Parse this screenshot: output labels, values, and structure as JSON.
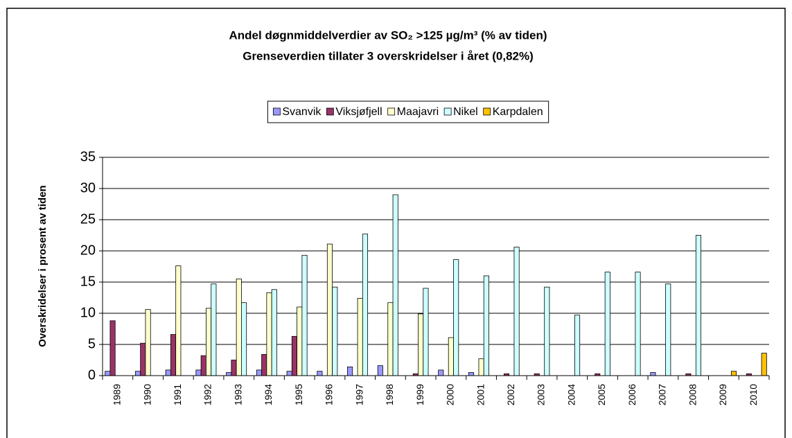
{
  "chart_data": {
    "type": "bar",
    "title": "Andel døgnmiddelverdier av SO₂ >125 µg/m³  (% av tiden)",
    "subtitle": "Grenseverdien tillater 3 overskridelser i året (0,82%)",
    "y_label": "Overskridelser i prosent av tiden",
    "categories": [
      "1989",
      "1990",
      "1991",
      "1992",
      "1993",
      "1994",
      "1995",
      "1996",
      "1997",
      "1998",
      "1999",
      "2000",
      "2001",
      "2002",
      "2003",
      "2004",
      "2005",
      "2006",
      "2007",
      "2008",
      "2009",
      "2010"
    ],
    "series": [
      {
        "name": "Svanvik",
        "color": "#9999ff",
        "values": [
          0.7,
          0.7,
          0.9,
          0.9,
          0.5,
          0.9,
          0.7,
          0.7,
          1.4,
          1.6,
          0,
          0.9,
          0.5,
          0,
          0,
          0,
          0,
          0,
          0.5,
          0,
          0,
          0
        ]
      },
      {
        "name": "Viksjøfjell",
        "color": "#993366",
        "values": [
          8.8,
          5.2,
          6.6,
          3.2,
          2.5,
          3.4,
          6.3,
          0,
          0,
          0,
          0.3,
          0,
          0,
          0.3,
          0.3,
          0,
          0.3,
          0,
          0,
          0.3,
          0,
          0.3
        ]
      },
      {
        "name": "Maajavri",
        "color": "#ffffcc",
        "values": [
          0,
          10.6,
          17.6,
          10.8,
          15.5,
          13.3,
          11.0,
          21.1,
          12.4,
          11.7,
          9.9,
          6.1,
          2.7,
          0,
          0,
          0,
          0,
          0,
          0,
          0,
          0,
          0
        ]
      },
      {
        "name": "Nikel",
        "color": "#ccffff",
        "values": [
          0,
          0,
          0,
          14.7,
          11.7,
          13.8,
          19.3,
          14.2,
          22.7,
          29.0,
          14.0,
          18.6,
          16.0,
          20.6,
          14.2,
          9.7,
          16.6,
          16.6,
          14.7,
          22.5,
          0,
          0
        ]
      },
      {
        "name": "Karpdalen",
        "color": "#ffc000",
        "values": [
          0,
          0,
          0,
          0,
          0,
          0,
          0,
          0,
          0,
          0,
          0,
          0,
          0,
          0,
          0,
          0,
          0,
          0,
          0,
          0,
          0.7,
          3.6
        ]
      }
    ],
    "ylim": [
      0,
      35
    ],
    "yticks": [
      0,
      5,
      10,
      15,
      20,
      25,
      30,
      35
    ],
    "grid": true,
    "legend": "top"
  }
}
